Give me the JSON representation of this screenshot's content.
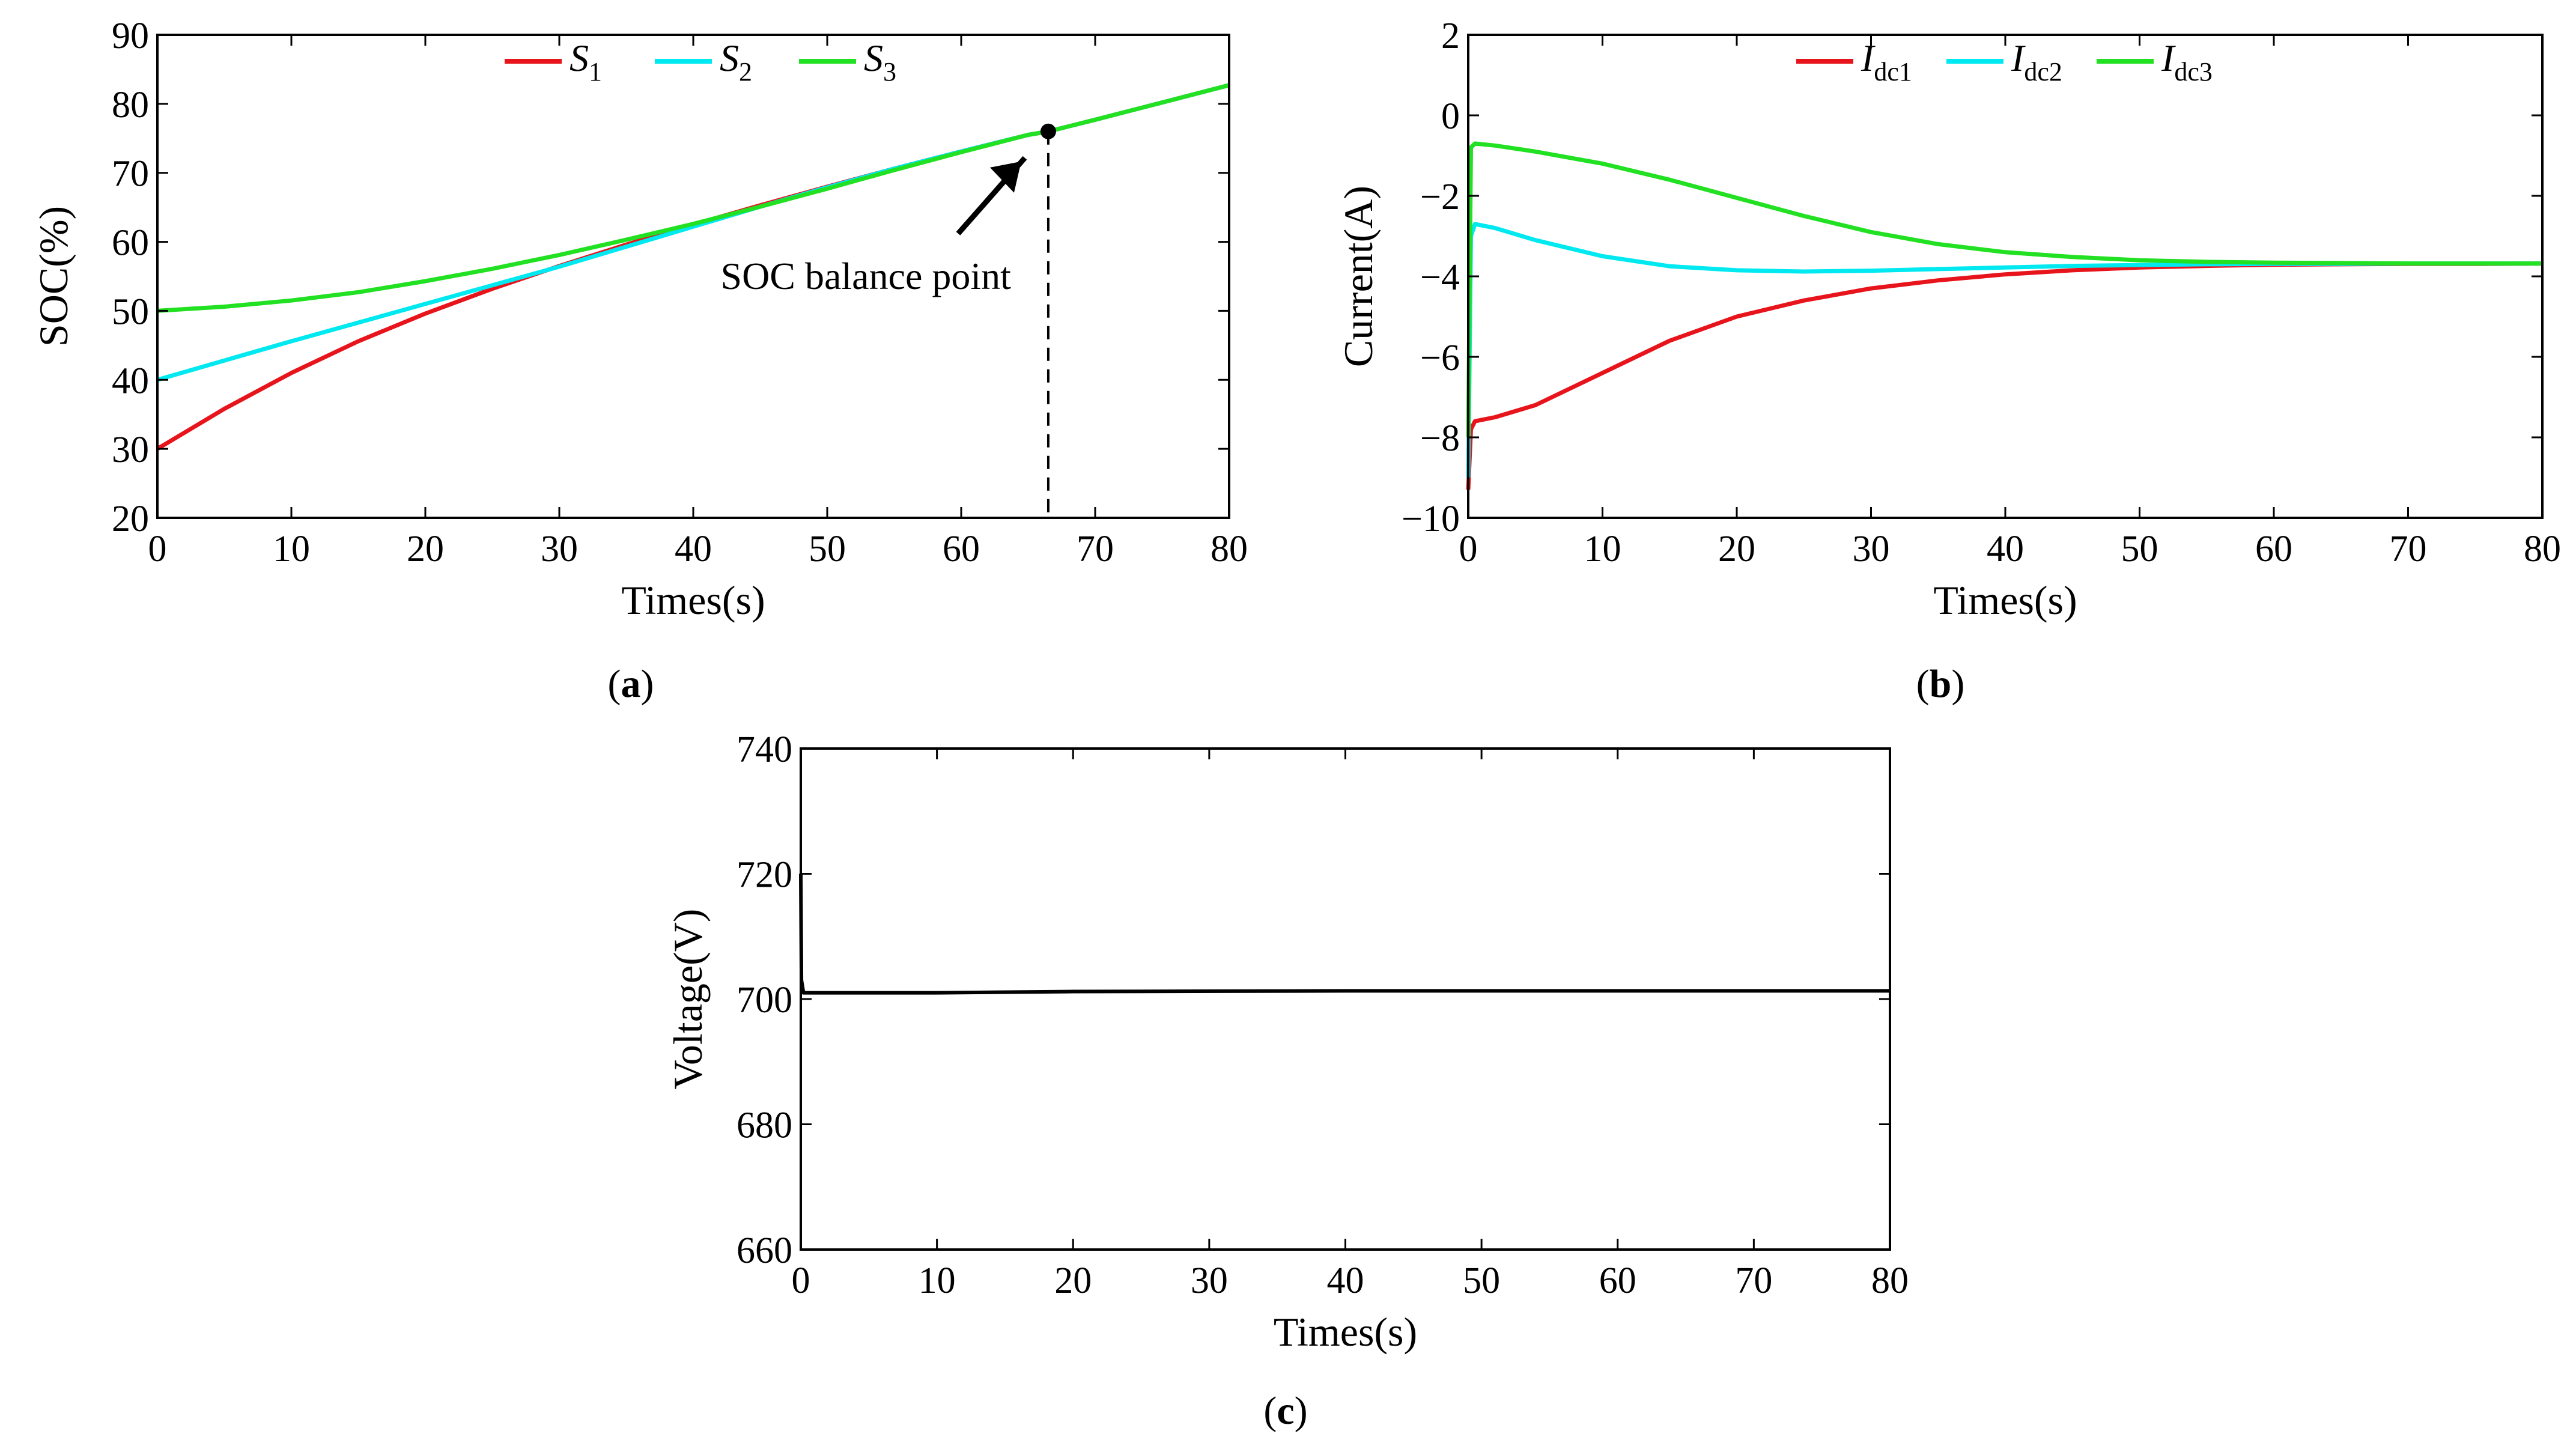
{
  "chart_data": [
    {
      "id": "a",
      "type": "line",
      "caption": "a",
      "xlabel": "Times(s)",
      "ylabel": "SOC(%)",
      "xlim": [
        0,
        80
      ],
      "ylim": [
        20,
        90
      ],
      "xticks": [
        0,
        10,
        20,
        30,
        40,
        50,
        60,
        70,
        80
      ],
      "yticks": [
        20,
        30,
        40,
        50,
        60,
        70,
        80,
        90
      ],
      "legend_position": "top-center",
      "series": [
        {
          "name": "S",
          "sub": "1",
          "color": "#e8141c",
          "x": [
            0,
            5,
            10,
            15,
            20,
            25,
            30,
            35,
            40,
            45,
            50,
            55,
            60,
            65,
            66.5,
            70,
            75,
            80
          ],
          "y": [
            30,
            35.8,
            41,
            45.6,
            49.6,
            53.2,
            56.5,
            59.6,
            62.5,
            65.3,
            68,
            70.6,
            73.1,
            75.5,
            76,
            77.7,
            80.2,
            82.7
          ]
        },
        {
          "name": "S",
          "sub": "2",
          "color": "#00e8f0",
          "x": [
            0,
            5,
            10,
            15,
            20,
            25,
            30,
            35,
            40,
            45,
            50,
            55,
            60,
            65,
            66.5,
            70,
            75,
            80
          ],
          "y": [
            40,
            42.8,
            45.6,
            48.3,
            51,
            53.7,
            56.4,
            59.3,
            62.2,
            65.1,
            67.9,
            70.6,
            73.1,
            75.5,
            76,
            77.7,
            80.2,
            82.7
          ]
        },
        {
          "name": "S",
          "sub": "3",
          "color": "#22e022",
          "x": [
            0,
            5,
            10,
            15,
            20,
            25,
            30,
            35,
            40,
            45,
            50,
            55,
            60,
            65,
            66.5,
            70,
            75,
            80
          ],
          "y": [
            50,
            50.6,
            51.5,
            52.7,
            54.3,
            56.1,
            58.1,
            60.3,
            62.6,
            65.1,
            67.7,
            70.4,
            73,
            75.5,
            76,
            77.7,
            80.2,
            82.7
          ]
        }
      ],
      "annotation": {
        "text": "SOC balance point",
        "x": 66.5,
        "y": 76
      }
    },
    {
      "id": "b",
      "type": "line",
      "caption": "b",
      "xlabel": "Times(s)",
      "ylabel": "Current(A)",
      "xlim": [
        0,
        80
      ],
      "ylim": [
        -10,
        2
      ],
      "xticks": [
        0,
        10,
        20,
        30,
        40,
        50,
        60,
        70,
        80
      ],
      "yticks": [
        -10,
        -8,
        -6,
        -4,
        -2,
        0,
        2
      ],
      "ytick_labels": [
        "−10",
        "−8",
        "−6",
        "−4",
        "−2",
        "0",
        "2"
      ],
      "legend_position": "top-center",
      "series": [
        {
          "name": "I",
          "sub": "dc1",
          "color": "#e8141c",
          "x": [
            0,
            0.2,
            0.5,
            2,
            5,
            10,
            15,
            20,
            25,
            30,
            35,
            40,
            45,
            50,
            55,
            60,
            65,
            70,
            75,
            80
          ],
          "y": [
            -9.3,
            -7.8,
            -7.6,
            -7.5,
            -7.2,
            -6.4,
            -5.6,
            -5.0,
            -4.6,
            -4.3,
            -4.1,
            -3.95,
            -3.85,
            -3.78,
            -3.74,
            -3.71,
            -3.7,
            -3.69,
            -3.69,
            -3.68
          ]
        },
        {
          "name": "I",
          "sub": "dc2",
          "color": "#00e8f0",
          "x": [
            0,
            0.2,
            0.5,
            2,
            5,
            10,
            15,
            20,
            25,
            30,
            35,
            40,
            45,
            50,
            55,
            60,
            65,
            70,
            75,
            80
          ],
          "y": [
            -9.0,
            -3.0,
            -2.7,
            -2.8,
            -3.1,
            -3.5,
            -3.75,
            -3.85,
            -3.88,
            -3.86,
            -3.82,
            -3.78,
            -3.74,
            -3.72,
            -3.7,
            -3.69,
            -3.69,
            -3.68,
            -3.68,
            -3.68
          ]
        },
        {
          "name": "I",
          "sub": "dc3",
          "color": "#22e022",
          "x": [
            0,
            0.2,
            0.5,
            2,
            5,
            10,
            15,
            20,
            25,
            30,
            35,
            40,
            45,
            50,
            55,
            60,
            65,
            70,
            75,
            80
          ],
          "y": [
            -8.0,
            -0.8,
            -0.7,
            -0.75,
            -0.9,
            -1.2,
            -1.6,
            -2.05,
            -2.5,
            -2.9,
            -3.2,
            -3.4,
            -3.52,
            -3.6,
            -3.64,
            -3.66,
            -3.67,
            -3.68,
            -3.68,
            -3.68
          ]
        }
      ]
    },
    {
      "id": "c",
      "type": "line",
      "caption": "c",
      "xlabel": "Times(s)",
      "ylabel": "Voltage(V)",
      "xlim": [
        0,
        80
      ],
      "ylim": [
        660,
        740
      ],
      "xticks": [
        0,
        10,
        20,
        30,
        40,
        50,
        60,
        70,
        80
      ],
      "yticks": [
        660,
        680,
        700,
        720,
        740
      ],
      "series": [
        {
          "name": "Voltage",
          "color": "#000000",
          "x": [
            0,
            0.05,
            0.2,
            0.5,
            10,
            20,
            40,
            60,
            80
          ],
          "y": [
            720,
            703,
            701,
            701,
            701,
            701.2,
            701.3,
            701.3,
            701.3
          ]
        }
      ]
    }
  ]
}
